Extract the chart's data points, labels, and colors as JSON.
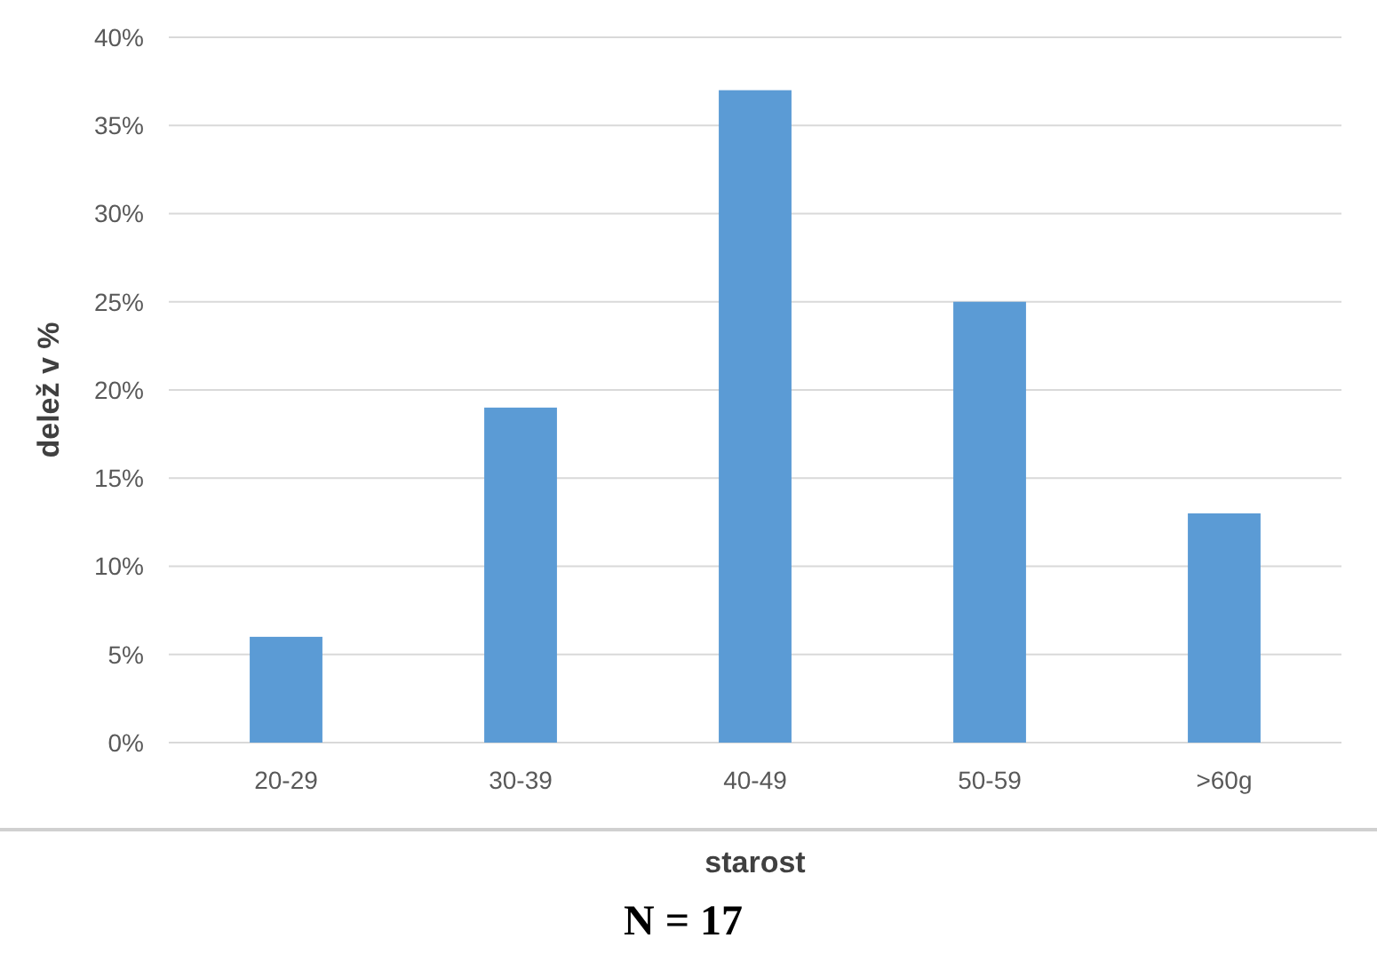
{
  "chart_data": {
    "type": "bar",
    "xlabel": "starost",
    "ylabel": "delež v %",
    "categories": [
      "20-29",
      "30-39",
      "40-49",
      "50-59",
      ">60g"
    ],
    "values": [
      6,
      19,
      37,
      25,
      13
    ],
    "color": "#5b9bd5",
    "ylim": [
      0,
      40
    ],
    "yticks": [
      {
        "value": 0,
        "label": "0%"
      },
      {
        "value": 5,
        "label": "5%"
      },
      {
        "value": 10,
        "label": "10%"
      },
      {
        "value": 15,
        "label": "15%"
      },
      {
        "value": 20,
        "label": "20%"
      },
      {
        "value": 25,
        "label": "25%"
      },
      {
        "value": 30,
        "label": "30%"
      },
      {
        "value": 35,
        "label": "35%"
      },
      {
        "value": 40,
        "label": "40%"
      }
    ],
    "grid": "y",
    "annotations": [
      "N = 17"
    ]
  }
}
